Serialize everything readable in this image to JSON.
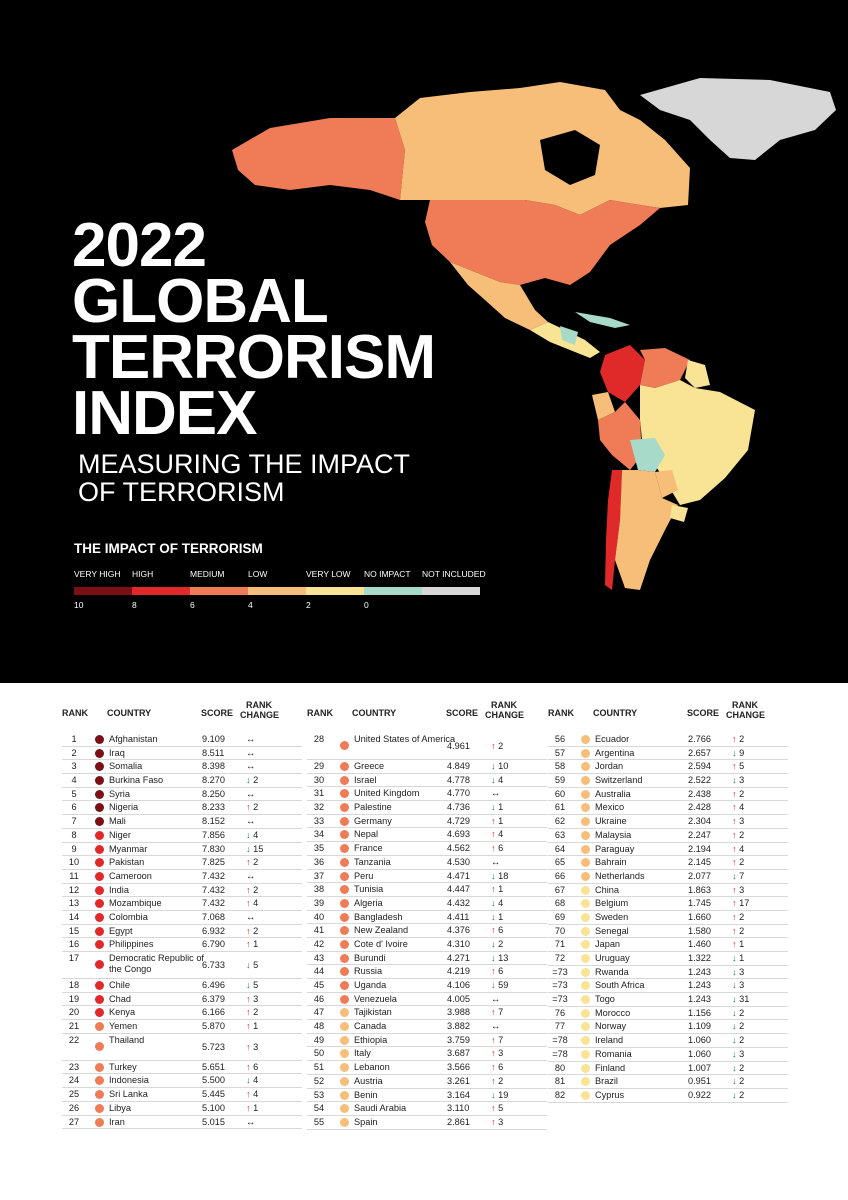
{
  "hero": {
    "title_lines": [
      "2022",
      "GLOBAL",
      "TERRORISM",
      "INDEX"
    ],
    "subtitle_lines": [
      "MEASURING THE IMPACT",
      "OF TERRORISM"
    ]
  },
  "legend": {
    "title": "THE IMPACT OF TERRORISM",
    "categories": [
      {
        "label": "VERY HIGH",
        "color": "#7a1016"
      },
      {
        "label": "HIGH",
        "color": "#e02a2a"
      },
      {
        "label": "MEDIUM",
        "color": "#ef7b57"
      },
      {
        "label": "LOW",
        "color": "#f6be78"
      },
      {
        "label": "VERY LOW",
        "color": "#f9e394"
      },
      {
        "label": "NO IMPACT",
        "color": "#a7dac9"
      },
      {
        "label": "NOT INCLUDED",
        "color": "#d7d7d7"
      }
    ],
    "scale": [
      "10",
      "8",
      "6",
      "4",
      "2",
      "0"
    ]
  },
  "table": {
    "headers": {
      "rank": "RANK",
      "country": "COUNTRY",
      "score": "SCORE",
      "change_1": "RANK",
      "change_2": "CHANGE"
    },
    "columns": [
      [
        {
          "rank": "1",
          "country": "Afghanistan",
          "score": "9.109",
          "dir": "same",
          "change": "",
          "level": "very-high"
        },
        {
          "rank": "2",
          "country": "Iraq",
          "score": "8.511",
          "dir": "same",
          "change": "",
          "level": "very-high"
        },
        {
          "rank": "3",
          "country": "Somalia",
          "score": "8.398",
          "dir": "same",
          "change": "",
          "level": "very-high"
        },
        {
          "rank": "4",
          "country": "Burkina Faso",
          "score": "8.270",
          "dir": "down",
          "change": "2",
          "level": "very-high"
        },
        {
          "rank": "5",
          "country": "Syria",
          "score": "8.250",
          "dir": "same",
          "change": "",
          "level": "very-high"
        },
        {
          "rank": "6",
          "country": "Nigeria",
          "score": "8.233",
          "dir": "up",
          "change": "2",
          "level": "very-high"
        },
        {
          "rank": "7",
          "country": "Mali",
          "score": "8.152",
          "dir": "same",
          "change": "",
          "level": "very-high"
        },
        {
          "rank": "8",
          "country": "Niger",
          "score": "7.856",
          "dir": "down",
          "change": "4",
          "level": "high"
        },
        {
          "rank": "9",
          "country": "Myanmar",
          "score": "7.830",
          "dir": "down",
          "change": "15",
          "level": "high"
        },
        {
          "rank": "10",
          "country": "Pakistan",
          "score": "7.825",
          "dir": "up",
          "change": "2",
          "level": "high"
        },
        {
          "rank": "11",
          "country": "Cameroon",
          "score": "7.432",
          "dir": "same",
          "change": "",
          "level": "high"
        },
        {
          "rank": "12",
          "country": "India",
          "score": "7.432",
          "dir": "up",
          "change": "2",
          "level": "high"
        },
        {
          "rank": "13",
          "country": "Mozambique",
          "score": "7.432",
          "dir": "up",
          "change": "4",
          "level": "high"
        },
        {
          "rank": "14",
          "country": "Colombia",
          "score": "7.068",
          "dir": "same",
          "change": "",
          "level": "high"
        },
        {
          "rank": "15",
          "country": "Egypt",
          "score": "6.932",
          "dir": "up",
          "change": "2",
          "level": "high"
        },
        {
          "rank": "16",
          "country": "Philippines",
          "score": "6.790",
          "dir": "up",
          "change": "1",
          "level": "high"
        },
        {
          "rank": "17",
          "country": "Democratic Republic of the Congo",
          "score": "6.733",
          "dir": "down",
          "change": "5",
          "level": "high",
          "tall": true
        },
        {
          "rank": "18",
          "country": "Chile",
          "score": "6.496",
          "dir": "down",
          "change": "5",
          "level": "high"
        },
        {
          "rank": "19",
          "country": "Chad",
          "score": "6.379",
          "dir": "up",
          "change": "3",
          "level": "high"
        },
        {
          "rank": "20",
          "country": "Kenya",
          "score": "6.166",
          "dir": "up",
          "change": "2",
          "level": "high"
        },
        {
          "rank": "21",
          "country": "Yemen",
          "score": "5.870",
          "dir": "up",
          "change": "1",
          "level": "medium"
        },
        {
          "rank": "22",
          "country": "Thailand",
          "score": "5.723",
          "dir": "up",
          "change": "3",
          "level": "medium",
          "tall": true
        },
        {
          "rank": "23",
          "country": "Turkey",
          "score": "5.651",
          "dir": "up",
          "change": "6",
          "level": "medium"
        },
        {
          "rank": "24",
          "country": "Indonesia",
          "score": "5.500",
          "dir": "down",
          "change": "4",
          "level": "medium"
        },
        {
          "rank": "25",
          "country": "Sri Lanka",
          "score": "5.445",
          "dir": "up",
          "change": "4",
          "level": "medium"
        },
        {
          "rank": "26",
          "country": "Libya",
          "score": "5.100",
          "dir": "up",
          "change": "1",
          "level": "medium"
        },
        {
          "rank": "27",
          "country": "Iran",
          "score": "5.015",
          "dir": "same",
          "change": "",
          "level": "medium"
        }
      ],
      [
        {
          "rank": "28",
          "country": "United States of America",
          "score": "4.961",
          "dir": "up",
          "change": "2",
          "level": "medium",
          "tall": true
        },
        {
          "rank": "29",
          "country": "Greece",
          "score": "4.849",
          "dir": "down",
          "change": "10",
          "level": "medium"
        },
        {
          "rank": "30",
          "country": "Israel",
          "score": "4.778",
          "dir": "down",
          "change": "4",
          "level": "medium"
        },
        {
          "rank": "31",
          "country": "United Kingdom",
          "score": "4.770",
          "dir": "same",
          "change": "",
          "level": "medium"
        },
        {
          "rank": "32",
          "country": "Palestine",
          "score": "4.736",
          "dir": "down",
          "change": "1",
          "level": "medium"
        },
        {
          "rank": "33",
          "country": "Germany",
          "score": "4.729",
          "dir": "up",
          "change": "1",
          "level": "medium"
        },
        {
          "rank": "34",
          "country": "Nepal",
          "score": "4.693",
          "dir": "up",
          "change": "4",
          "level": "medium"
        },
        {
          "rank": "35",
          "country": "France",
          "score": "4.562",
          "dir": "up",
          "change": "6",
          "level": "medium"
        },
        {
          "rank": "36",
          "country": "Tanzania",
          "score": "4.530",
          "dir": "same",
          "change": "",
          "level": "medium"
        },
        {
          "rank": "37",
          "country": "Peru",
          "score": "4.471",
          "dir": "down",
          "change": "18",
          "level": "medium"
        },
        {
          "rank": "38",
          "country": "Tunisia",
          "score": "4.447",
          "dir": "up",
          "change": "1",
          "level": "medium"
        },
        {
          "rank": "39",
          "country": "Algeria",
          "score": "4.432",
          "dir": "down",
          "change": "4",
          "level": "medium"
        },
        {
          "rank": "40",
          "country": "Bangladesh",
          "score": "4.411",
          "dir": "down",
          "change": "1",
          "level": "medium"
        },
        {
          "rank": "41",
          "country": "New Zealand",
          "score": "4.376",
          "dir": "up",
          "change": "6",
          "level": "medium"
        },
        {
          "rank": "42",
          "country": "Cote d' Ivoire",
          "score": "4.310",
          "dir": "down",
          "change": "2",
          "level": "medium"
        },
        {
          "rank": "43",
          "country": "Burundi",
          "score": "4.271",
          "dir": "down",
          "change": "13",
          "level": "medium"
        },
        {
          "rank": "44",
          "country": "Russia",
          "score": "4.219",
          "dir": "up",
          "change": "6",
          "level": "medium"
        },
        {
          "rank": "45",
          "country": "Uganda",
          "score": "4.106",
          "dir": "down",
          "change": "59",
          "level": "medium"
        },
        {
          "rank": "46",
          "country": "Venezuela",
          "score": "4.005",
          "dir": "same",
          "change": "",
          "level": "medium"
        },
        {
          "rank": "47",
          "country": "Tajikistan",
          "score": "3.988",
          "dir": "up",
          "change": "7",
          "level": "low"
        },
        {
          "rank": "48",
          "country": "Canada",
          "score": "3.882",
          "dir": "same",
          "change": "",
          "level": "low"
        },
        {
          "rank": "49",
          "country": "Ethiopia",
          "score": "3.759",
          "dir": "up",
          "change": "7",
          "level": "low"
        },
        {
          "rank": "50",
          "country": "Italy",
          "score": "3.687",
          "dir": "up",
          "change": "3",
          "level": "low"
        },
        {
          "rank": "51",
          "country": "Lebanon",
          "score": "3.566",
          "dir": "up",
          "change": "6",
          "level": "low"
        },
        {
          "rank": "52",
          "country": "Austria",
          "score": "3.261",
          "dir": "up",
          "change": "2",
          "level": "low"
        },
        {
          "rank": "53",
          "country": "Benin",
          "score": "3.164",
          "dir": "down",
          "change": "19",
          "level": "low"
        },
        {
          "rank": "54",
          "country": "Saudi Arabia",
          "score": "3.110",
          "dir": "up",
          "change": "5",
          "level": "low"
        },
        {
          "rank": "55",
          "country": "Spain",
          "score": "2.861",
          "dir": "up",
          "change": "3",
          "level": "low"
        }
      ],
      [
        {
          "rank": "56",
          "country": "Ecuador",
          "score": "2.766",
          "dir": "up",
          "change": "2",
          "level": "low"
        },
        {
          "rank": "57",
          "country": "Argentina",
          "score": "2.657",
          "dir": "down",
          "change": "9",
          "level": "low"
        },
        {
          "rank": "58",
          "country": "Jordan",
          "score": "2.594",
          "dir": "up",
          "change": "5",
          "level": "low"
        },
        {
          "rank": "59",
          "country": "Switzerland",
          "score": "2.522",
          "dir": "down",
          "change": "3",
          "level": "low"
        },
        {
          "rank": "60",
          "country": "Australia",
          "score": "2.438",
          "dir": "up",
          "change": "2",
          "level": "low"
        },
        {
          "rank": "61",
          "country": "Mexico",
          "score": "2.428",
          "dir": "up",
          "change": "4",
          "level": "low"
        },
        {
          "rank": "62",
          "country": "Ukraine",
          "score": "2.304",
          "dir": "up",
          "change": "3",
          "level": "low"
        },
        {
          "rank": "63",
          "country": "Malaysia",
          "score": "2.247",
          "dir": "up",
          "change": "2",
          "level": "low"
        },
        {
          "rank": "64",
          "country": "Paraguay",
          "score": "2.194",
          "dir": "up",
          "change": "4",
          "level": "low"
        },
        {
          "rank": "65",
          "country": "Bahrain",
          "score": "2.145",
          "dir": "up",
          "change": "2",
          "level": "low"
        },
        {
          "rank": "66",
          "country": "Netherlands",
          "score": "2.077",
          "dir": "down",
          "change": "7",
          "level": "low"
        },
        {
          "rank": "67",
          "country": "China",
          "score": "1.863",
          "dir": "up",
          "change": "3",
          "level": "very-low"
        },
        {
          "rank": "68",
          "country": "Belgium",
          "score": "1.745",
          "dir": "up",
          "change": "17",
          "level": "very-low"
        },
        {
          "rank": "69",
          "country": "Sweden",
          "score": "1.660",
          "dir": "up",
          "change": "2",
          "level": "very-low"
        },
        {
          "rank": "70",
          "country": "Senegal",
          "score": "1.580",
          "dir": "up",
          "change": "2",
          "level": "very-low"
        },
        {
          "rank": "71",
          "country": "Japan",
          "score": "1.460",
          "dir": "up",
          "change": "1",
          "level": "very-low"
        },
        {
          "rank": "72",
          "country": "Uruguay",
          "score": "1.322",
          "dir": "down",
          "change": "1",
          "level": "very-low"
        },
        {
          "rank": "=73",
          "country": "Rwanda",
          "score": "1.243",
          "dir": "down",
          "change": "3",
          "level": "very-low"
        },
        {
          "rank": "=73",
          "country": "South Africa",
          "score": "1.243",
          "dir": "down",
          "change": "3",
          "level": "very-low"
        },
        {
          "rank": "=73",
          "country": "Togo",
          "score": "1.243",
          "dir": "down",
          "change": "31",
          "level": "very-low"
        },
        {
          "rank": "76",
          "country": "Morocco",
          "score": "1.156",
          "dir": "down",
          "change": "2",
          "level": "very-low"
        },
        {
          "rank": "77",
          "country": "Norway",
          "score": "1.109",
          "dir": "down",
          "change": "2",
          "level": "very-low"
        },
        {
          "rank": "=78",
          "country": "Ireland",
          "score": "1.060",
          "dir": "down",
          "change": "2",
          "level": "very-low"
        },
        {
          "rank": "=78",
          "country": "Romania",
          "score": "1.060",
          "dir": "down",
          "change": "3",
          "level": "very-low"
        },
        {
          "rank": "80",
          "country": "Finland",
          "score": "1.007",
          "dir": "down",
          "change": "2",
          "level": "very-low"
        },
        {
          "rank": "81",
          "country": "Brazil",
          "score": "0.951",
          "dir": "down",
          "change": "2",
          "level": "very-low"
        },
        {
          "rank": "82",
          "country": "Cyprus",
          "score": "0.922",
          "dir": "down",
          "change": "2",
          "level": "very-low"
        }
      ]
    ]
  },
  "level_colors": {
    "very-high": "#7a1016",
    "high": "#e02a2a",
    "medium": "#ef7b57",
    "low": "#f6be78",
    "very-low": "#f9e394"
  }
}
